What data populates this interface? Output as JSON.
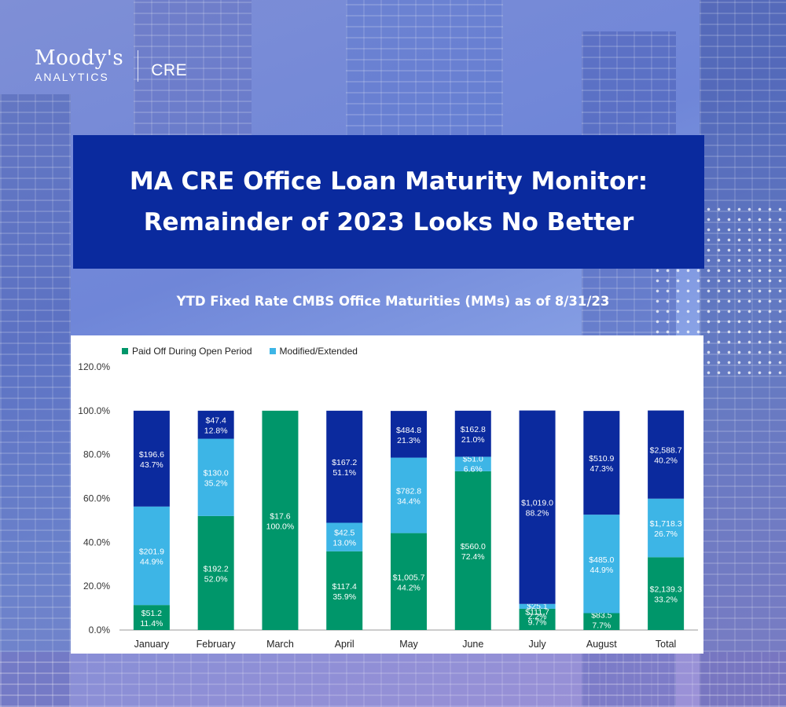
{
  "branding": {
    "name": "Moody's",
    "sub": "ANALYTICS",
    "unit": "CRE"
  },
  "title": {
    "line1": "MA CRE Office Loan Maturity Monitor:",
    "line2": "Remainder of 2023 Looks No Better"
  },
  "colors": {
    "paid_off": "#00966a",
    "modified": "#3db5e6",
    "third": "#0b2a9e",
    "title_bg": "#0a2a9e"
  },
  "chart_data": {
    "type": "bar",
    "stacked": true,
    "title": "YTD Fixed Rate CMBS Office Maturities (MMs) as of 8/31/23",
    "ylim": [
      0,
      120
    ],
    "yticks": [
      "0.0%",
      "20.0%",
      "40.0%",
      "60.0%",
      "80.0%",
      "100.0%",
      "120.0%"
    ],
    "legend_position": "top-left",
    "legend": [
      "Paid Off During Open Period",
      "Modified/Extended"
    ],
    "categories": [
      "January",
      "February",
      "March",
      "April",
      "May",
      "June",
      "July",
      "August",
      "Total"
    ],
    "series": [
      {
        "name": "Paid Off During Open Period",
        "values": [
          11.4,
          52.0,
          100.0,
          35.9,
          44.2,
          72.4,
          9.7,
          7.7,
          33.2
        ],
        "amount_labels": [
          "$51.2",
          "$192.2",
          "$17.6",
          "$117.4",
          "$1,005.7",
          "$560.0",
          "$111.7",
          "$83.5",
          "$2,139.3"
        ],
        "pct_labels": [
          "11.4%",
          "52.0%",
          "100.0%",
          "35.9%",
          "44.2%",
          "72.4%",
          "9.7%",
          "7.7%",
          "33.2%"
        ]
      },
      {
        "name": "Modified/Extended",
        "values": [
          44.9,
          35.2,
          0,
          13.0,
          34.4,
          6.6,
          2.2,
          44.9,
          26.7
        ],
        "amount_labels": [
          "$201.9",
          "$130.0",
          "",
          "$42.5",
          "$782.8",
          "$51.0",
          "$25.1",
          "$485.0",
          "$1,718.3"
        ],
        "pct_labels": [
          "44.9%",
          "35.2%",
          "",
          "13.0%",
          "34.4%",
          "6.6%",
          "2.2%",
          "44.9%",
          "26.7%"
        ]
      },
      {
        "values": [
          43.7,
          12.8,
          0,
          51.1,
          21.3,
          21.0,
          88.2,
          47.3,
          40.2
        ],
        "amount_labels": [
          "$196.6",
          "$47.4",
          "",
          "$167.2",
          "$484.8",
          "$162.8",
          "$1,019.0",
          "$510.9",
          "$2,588.7"
        ],
        "pct_labels": [
          "43.7%",
          "12.8%",
          "",
          "51.1%",
          "21.3%",
          "21.0%",
          "88.2%",
          "47.3%",
          "40.2%"
        ]
      }
    ]
  }
}
